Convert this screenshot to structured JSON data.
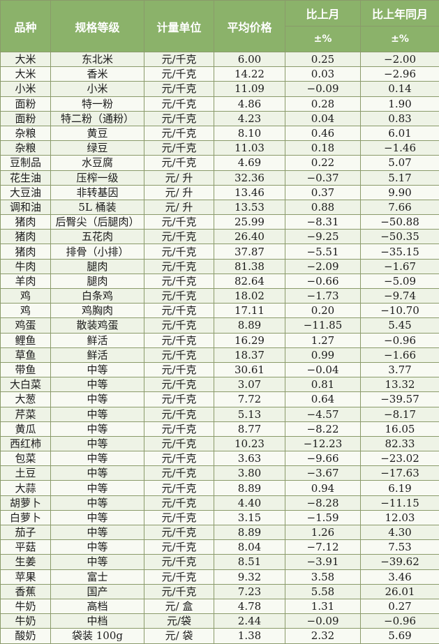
{
  "headers": {
    "variety": "品种",
    "spec": "规格等级",
    "unit": "计量单位",
    "avg_price": "平均价格",
    "mom": "比上月",
    "yoy": "比上年同月",
    "pm": "±%"
  },
  "rows": [
    {
      "variety": "大米",
      "spec": "东北米",
      "unit": "元/千克",
      "price": "6.00",
      "mom": "0.25",
      "yoy": "−2.00"
    },
    {
      "variety": "大米",
      "spec": "香米",
      "unit": "元/千克",
      "price": "14.22",
      "mom": "0.03",
      "yoy": "−2.96"
    },
    {
      "variety": "小米",
      "spec": "小米",
      "unit": "元/千克",
      "price": "11.09",
      "mom": "−0.09",
      "yoy": "0.14"
    },
    {
      "variety": "面粉",
      "spec": "特一粉",
      "unit": "元/千克",
      "price": "4.86",
      "mom": "0.28",
      "yoy": "1.90"
    },
    {
      "variety": "面粉",
      "spec": "特二粉（通粉）",
      "unit": "元/千克",
      "price": "4.23",
      "mom": "0.04",
      "yoy": "0.83"
    },
    {
      "variety": "杂粮",
      "spec": "黄豆",
      "unit": "元/千克",
      "price": "8.10",
      "mom": "0.46",
      "yoy": "6.01"
    },
    {
      "variety": "杂粮",
      "spec": "绿豆",
      "unit": "元/千克",
      "price": "11.03",
      "mom": "0.18",
      "yoy": "−1.46"
    },
    {
      "variety": "豆制品",
      "spec": "水豆腐",
      "unit": "元/千克",
      "price": "4.69",
      "mom": "0.22",
      "yoy": "5.07"
    },
    {
      "variety": "花生油",
      "spec": "压榨一级",
      "unit": "元/ 升",
      "price": "32.36",
      "mom": "−0.37",
      "yoy": "5.17"
    },
    {
      "variety": "大豆油",
      "spec": "非转基因",
      "unit": "元/ 升",
      "price": "13.46",
      "mom": "0.37",
      "yoy": "9.90"
    },
    {
      "variety": "调和油",
      "spec": "5L 桶装",
      "unit": "元/ 升",
      "price": "13.53",
      "mom": "0.88",
      "yoy": "7.66"
    },
    {
      "variety": "猪肉",
      "spec": "后臀尖（后腿肉）",
      "unit": "元/千克",
      "price": "25.99",
      "mom": "−8.31",
      "yoy": "−50.88"
    },
    {
      "variety": "猪肉",
      "spec": "五花肉",
      "unit": "元/千克",
      "price": "26.40",
      "mom": "−9.25",
      "yoy": "−50.35"
    },
    {
      "variety": "猪肉",
      "spec": "排骨（小排）",
      "unit": "元/千克",
      "price": "37.87",
      "mom": "−5.51",
      "yoy": "−35.15"
    },
    {
      "variety": "牛肉",
      "spec": "腿肉",
      "unit": "元/千克",
      "price": "81.38",
      "mom": "−2.09",
      "yoy": "−1.67"
    },
    {
      "variety": "羊肉",
      "spec": "腿肉",
      "unit": "元/千克",
      "price": "82.64",
      "mom": "−0.66",
      "yoy": "−5.09"
    },
    {
      "variety": "鸡",
      "spec": "白条鸡",
      "unit": "元/千克",
      "price": "18.02",
      "mom": "−1.73",
      "yoy": "−9.74"
    },
    {
      "variety": "鸡",
      "spec": "鸡胸肉",
      "unit": "元/千克",
      "price": "17.11",
      "mom": "0.20",
      "yoy": "−10.70"
    },
    {
      "variety": "鸡蛋",
      "spec": "散装鸡蛋",
      "unit": "元/千克",
      "price": "8.89",
      "mom": "−11.85",
      "yoy": "5.45"
    },
    {
      "variety": "鲤鱼",
      "spec": "鲜活",
      "unit": "元/千克",
      "price": "16.29",
      "mom": "1.27",
      "yoy": "−0.96"
    },
    {
      "variety": "草鱼",
      "spec": "鲜活",
      "unit": "元/千克",
      "price": "18.37",
      "mom": "0.99",
      "yoy": "−1.66"
    },
    {
      "variety": "带鱼",
      "spec": "中等",
      "unit": "元/千克",
      "price": "30.61",
      "mom": "−0.04",
      "yoy": "3.77"
    },
    {
      "variety": "大白菜",
      "spec": "中等",
      "unit": "元/千克",
      "price": "3.07",
      "mom": "0.81",
      "yoy": "13.32"
    },
    {
      "variety": "大葱",
      "spec": "中等",
      "unit": "元/千克",
      "price": "7.72",
      "mom": "0.64",
      "yoy": "−39.57"
    },
    {
      "variety": "芹菜",
      "spec": "中等",
      "unit": "元/千克",
      "price": "5.13",
      "mom": "−4.57",
      "yoy": "−8.17"
    },
    {
      "variety": "黄瓜",
      "spec": "中等",
      "unit": "元/千克",
      "price": "8.77",
      "mom": "−8.22",
      "yoy": "16.05"
    },
    {
      "variety": "西红柿",
      "spec": "中等",
      "unit": "元/千克",
      "price": "10.23",
      "mom": "−12.23",
      "yoy": "82.33"
    },
    {
      "variety": "包菜",
      "spec": "中等",
      "unit": "元/千克",
      "price": "3.63",
      "mom": "−9.66",
      "yoy": "−23.02"
    },
    {
      "variety": "土豆",
      "spec": "中等",
      "unit": "元/千克",
      "price": "3.80",
      "mom": "−3.67",
      "yoy": "−17.63"
    },
    {
      "variety": "大蒜",
      "spec": "中等",
      "unit": "元/千克",
      "price": "8.89",
      "mom": "0.94",
      "yoy": "6.19"
    },
    {
      "variety": "胡萝卜",
      "spec": "中等",
      "unit": "元/千克",
      "price": "4.40",
      "mom": "−8.28",
      "yoy": "−11.15"
    },
    {
      "variety": "白萝卜",
      "spec": "中等",
      "unit": "元/千克",
      "price": "3.15",
      "mom": "−1.59",
      "yoy": "12.03"
    },
    {
      "variety": "茄子",
      "spec": "中等",
      "unit": "元/千克",
      "price": "8.89",
      "mom": "1.26",
      "yoy": "4.30"
    },
    {
      "variety": "平菇",
      "spec": "中等",
      "unit": "元/千克",
      "price": "8.04",
      "mom": "−7.12",
      "yoy": "7.53"
    },
    {
      "variety": "生姜",
      "spec": "中等",
      "unit": "元/千克",
      "price": "8.51",
      "mom": "−3.91",
      "yoy": "−39.62"
    },
    {
      "variety": "苹果",
      "spec": "富士",
      "unit": "元/千克",
      "price": "9.32",
      "mom": "3.58",
      "yoy": "3.46"
    },
    {
      "variety": "香蕉",
      "spec": "国产",
      "unit": "元/千克",
      "price": "7.23",
      "mom": "5.58",
      "yoy": "26.01"
    },
    {
      "variety": "牛奶",
      "spec": "高档",
      "unit": "元/ 盒",
      "price": "4.78",
      "mom": "1.31",
      "yoy": "0.27"
    },
    {
      "variety": "牛奶",
      "spec": "中档",
      "unit": "元/袋",
      "price": "2.44",
      "mom": "−0.09",
      "yoy": "−0.96"
    },
    {
      "variety": "酸奶",
      "spec": "袋装 100g",
      "unit": "元/ 袋",
      "price": "1.38",
      "mom": "2.32",
      "yoy": "5.69"
    }
  ]
}
